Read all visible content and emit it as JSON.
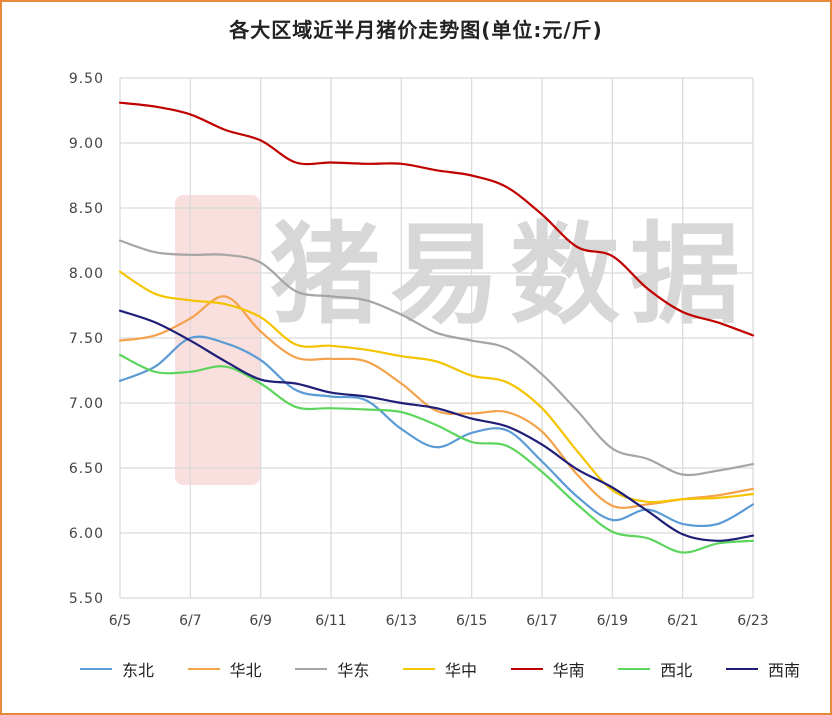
{
  "chart_data": {
    "type": "line",
    "title": "各大区域近半月猪价走势图(单位:元/斤)",
    "watermark": "猪易数据",
    "x": [
      "6/5",
      "6/6",
      "6/7",
      "6/8",
      "6/9",
      "6/10",
      "6/11",
      "6/12",
      "6/13",
      "6/14",
      "6/15",
      "6/16",
      "6/17",
      "6/18",
      "6/19",
      "6/20",
      "6/21",
      "6/22",
      "6/23"
    ],
    "x_tick_labels": [
      "6/5",
      "6/7",
      "6/9",
      "6/11",
      "6/13",
      "6/15",
      "6/17",
      "6/19",
      "6/21",
      "6/23"
    ],
    "ylim": [
      5.5,
      9.5
    ],
    "y_tick_labels": [
      "9.50",
      "9.00",
      "8.50",
      "8.00",
      "7.50",
      "7.00",
      "6.50",
      "6.00",
      "5.50"
    ],
    "grid": true,
    "legend_position": "bottom",
    "series": [
      {
        "name": "东北",
        "color": "#5b9bd5",
        "values": [
          7.17,
          7.28,
          7.5,
          7.46,
          7.33,
          7.1,
          7.05,
          7.02,
          6.8,
          6.66,
          6.77,
          6.79,
          6.55,
          6.28,
          6.1,
          6.18,
          6.07,
          6.07,
          6.22
        ]
      },
      {
        "name": "华北",
        "color": "#f4a24c",
        "values": [
          7.48,
          7.52,
          7.65,
          7.82,
          7.55,
          7.35,
          7.34,
          7.32,
          7.15,
          6.94,
          6.92,
          6.93,
          6.78,
          6.45,
          6.21,
          6.22,
          6.26,
          6.29,
          6.34
        ]
      },
      {
        "name": "华东",
        "color": "#a5a5a5",
        "values": [
          8.25,
          8.16,
          8.14,
          8.14,
          8.08,
          7.86,
          7.82,
          7.79,
          7.68,
          7.54,
          7.48,
          7.42,
          7.22,
          6.94,
          6.65,
          6.57,
          6.45,
          6.48,
          6.53
        ]
      },
      {
        "name": "华中",
        "color": "#f5c400",
        "values": [
          8.01,
          7.84,
          7.79,
          7.76,
          7.66,
          7.45,
          7.44,
          7.41,
          7.36,
          7.32,
          7.21,
          7.16,
          6.96,
          6.63,
          6.33,
          6.24,
          6.26,
          6.27,
          6.3
        ]
      },
      {
        "name": "华南",
        "color": "#c00000",
        "values": [
          9.31,
          9.28,
          9.22,
          9.1,
          9.02,
          8.85,
          8.85,
          8.84,
          8.84,
          8.79,
          8.75,
          8.66,
          8.45,
          8.2,
          8.13,
          7.88,
          7.7,
          7.62,
          7.52
        ]
      },
      {
        "name": "西北",
        "color": "#5dd55d",
        "values": [
          7.37,
          7.24,
          7.24,
          7.28,
          7.15,
          6.97,
          6.96,
          6.95,
          6.93,
          6.83,
          6.7,
          6.67,
          6.47,
          6.22,
          6.01,
          5.96,
          5.85,
          5.92,
          5.94
        ]
      },
      {
        "name": "西南",
        "color": "#1f1f78",
        "values": [
          7.71,
          7.62,
          7.48,
          7.32,
          7.18,
          7.15,
          7.08,
          7.05,
          7.0,
          6.96,
          6.88,
          6.82,
          6.68,
          6.49,
          6.35,
          6.17,
          5.99,
          5.94,
          5.98
        ]
      }
    ]
  }
}
